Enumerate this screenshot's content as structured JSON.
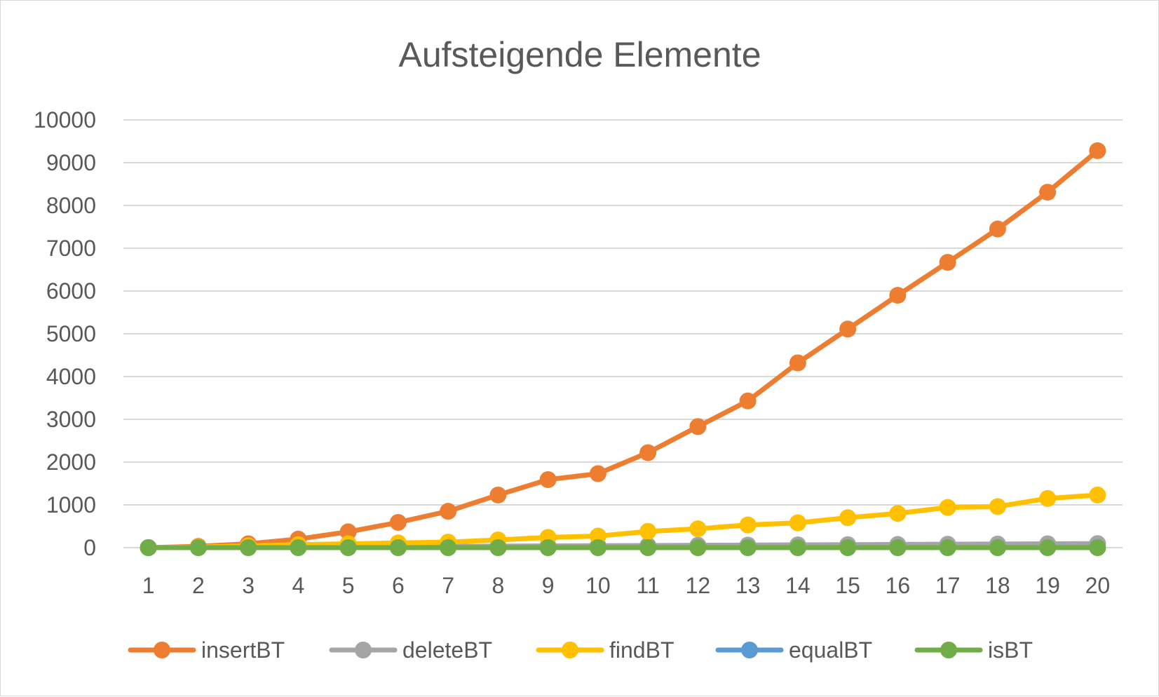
{
  "chart_data": {
    "type": "line",
    "title": "Aufsteigende Elemente",
    "xlabel": "",
    "ylabel": "",
    "categories": [
      "1",
      "2",
      "3",
      "4",
      "5",
      "6",
      "7",
      "8",
      "9",
      "10",
      "11",
      "12",
      "13",
      "14",
      "15",
      "16",
      "17",
      "18",
      "19",
      "20"
    ],
    "ylim": [
      0,
      10000
    ],
    "yticks": [
      "0",
      "1000",
      "2000",
      "3000",
      "4000",
      "5000",
      "6000",
      "7000",
      "8000",
      "9000",
      "10000"
    ],
    "grid": true,
    "legend_position": "bottom",
    "series": [
      {
        "name": "insertBT",
        "color": "#ED7D31",
        "values": [
          0,
          30,
          90,
          200,
          370,
          590,
          850,
          1230,
          1590,
          1730,
          2220,
          2830,
          3430,
          4320,
          5110,
          5900,
          6670,
          7450,
          8310,
          9280
        ]
      },
      {
        "name": "deleteBT",
        "color": "#A5A5A5",
        "values": [
          0,
          5,
          10,
          15,
          20,
          25,
          30,
          35,
          40,
          45,
          50,
          55,
          60,
          65,
          70,
          75,
          80,
          85,
          90,
          95
        ]
      },
      {
        "name": "findBT",
        "color": "#FFC000",
        "values": [
          0,
          15,
          40,
          70,
          90,
          110,
          130,
          180,
          240,
          270,
          380,
          440,
          530,
          580,
          700,
          800,
          940,
          960,
          1150,
          1230
        ]
      },
      {
        "name": "equalBT",
        "color": "#5B9BD5",
        "values": [
          0,
          0,
          0,
          0,
          0,
          0,
          0,
          0,
          0,
          0,
          0,
          0,
          0,
          0,
          0,
          0,
          0,
          0,
          0,
          0
        ]
      },
      {
        "name": "isBT",
        "color": "#70AD47",
        "values": [
          0,
          0,
          0,
          0,
          0,
          0,
          0,
          0,
          0,
          0,
          0,
          0,
          0,
          0,
          0,
          0,
          0,
          0,
          0,
          0
        ]
      }
    ]
  }
}
